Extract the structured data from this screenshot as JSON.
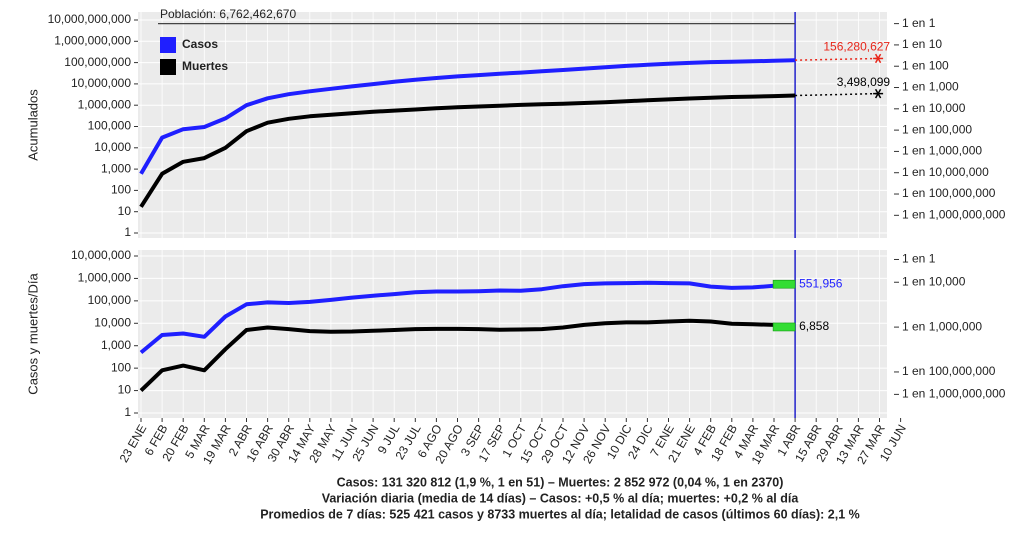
{
  "chart_data": [
    {
      "type": "line",
      "y_label": "Acumulados",
      "log_y": true,
      "grid": true,
      "legend": "top-left",
      "ylim": [
        1,
        10000000000
      ],
      "yticks": [
        1,
        10,
        100,
        {
          "value": 1000,
          "label": "1,000"
        },
        {
          "value": 10000,
          "label": "10,000"
        },
        {
          "value": 100000,
          "label": "100,000"
        },
        {
          "value": 1000000,
          "label": "1,000,000"
        },
        {
          "value": 10000000,
          "label": "10,000,000"
        },
        {
          "value": 100000000,
          "label": "100,000,000"
        },
        {
          "value": 1000000000,
          "label": "1,000,000,000"
        },
        {
          "value": 10000000000,
          "label": "10,000,000,000"
        }
      ],
      "y2lim": [
        1,
        10000000000
      ],
      "y2ticks": [
        {
          "value": 6762462670,
          "label": "1 en 1"
        },
        {
          "value": 676246267,
          "label": "1 en 10"
        },
        {
          "value": 67624626.7,
          "label": "1 en 100"
        },
        {
          "value": 6762462.67,
          "label": "1 en 1,000"
        },
        {
          "value": 676246.267,
          "label": "1 en 10,000"
        },
        {
          "value": 67624.6267,
          "label": "1 en 100,000"
        },
        {
          "value": 6762.46267,
          "label": "1 en 1,000,000"
        },
        {
          "value": 676.246267,
          "label": "1 en 10,000,000"
        },
        {
          "value": 67.6246267,
          "label": "1 en 100,000,000"
        },
        {
          "value": 6.76246267,
          "label": "1 en 1,000,000,000"
        }
      ],
      "population": {
        "value": 6762462670,
        "label": "Población: 6,762,462,670"
      },
      "series": [
        {
          "name": "Casos",
          "color": "#1f1fff",
          "values": [
            600,
            30000,
            75000,
            95000,
            240000,
            1000000,
            2100000,
            3300000,
            4500000,
            5900000,
            7600000,
            9800000,
            12500000,
            15500000,
            19000000,
            22500000,
            26000000,
            30000000,
            34000000,
            39000000,
            45000000,
            52000000,
            61000000,
            70000000,
            79000000,
            88000000,
            97000000,
            105000000,
            110000000,
            115000000,
            121000000,
            130000000,
            null,
            null,
            null,
            null
          ],
          "projection": {
            "value": 156280627,
            "label": "156,280,627",
            "color": "#e8261a"
          }
        },
        {
          "name": "Muertes",
          "color": "#000000",
          "values": [
            17,
            600,
            2200,
            3300,
            10000,
            60000,
            150000,
            230000,
            300000,
            360000,
            420000,
            490000,
            560000,
            630000,
            720000,
            800000,
            870000,
            950000,
            1030000,
            1100000,
            1180000,
            1270000,
            1390000,
            1540000,
            1690000,
            1870000,
            2070000,
            2260000,
            2420000,
            2540000,
            2670000,
            2840000,
            null,
            null,
            null,
            null
          ],
          "projection": {
            "value": 3498099,
            "label": "3,498,099",
            "color": "#000000"
          }
        }
      ]
    },
    {
      "type": "line",
      "y_label": "Casos y muertes/Día",
      "log_y": true,
      "grid": true,
      "categories": [
        "23 ENE",
        "6 FEB",
        "20 FEB",
        "5 MAR",
        "19 MAR",
        "2 ABR",
        "16 ABR",
        "30 ABR",
        "14 MAY",
        "28 MAY",
        "11 JUN",
        "25 JUN",
        "9 JUL",
        "23 JUL",
        "6 AGO",
        "20 AGO",
        "3 SEP",
        "17 SEP",
        "1 OCT",
        "15 OCT",
        "29 OCT",
        "12 NOV",
        "26 NOV",
        "10 DIC",
        "24 DIC",
        "7 ENE",
        "21 ENE",
        "4 FEB",
        "18 FEB",
        "4 MAR",
        "18 MAR",
        "1 ABR",
        "15 ABR",
        "29 ABR",
        "13 MAR",
        "27 MAR",
        "10 JUN"
      ],
      "ylim": [
        1,
        10000000
      ],
      "yticks": [
        1,
        10,
        100,
        {
          "value": 1000,
          "label": "1,000"
        },
        {
          "value": 10000,
          "label": "10,000"
        },
        {
          "value": 100000,
          "label": "100,000"
        },
        {
          "value": 1000000,
          "label": "1,000,000"
        },
        {
          "value": 10000000,
          "label": "10,000,000"
        }
      ],
      "y2lim": [
        1,
        10000000
      ],
      "y2ticks": [
        {
          "value": 7000000,
          "label": "1 en 1"
        },
        {
          "value": 676246.267,
          "label": "1 en 10,000"
        },
        {
          "value": 6762.46267,
          "label": "1 en 1,000,000"
        },
        {
          "value": 67.6246267,
          "label": "1 en 100,000,000"
        },
        {
          "value": 6.76246267,
          "label": "1 en 1,000,000,000"
        }
      ],
      "series": [
        {
          "color": "#1f1fff",
          "values": [
            500,
            3000,
            3500,
            2500,
            20000,
            70000,
            85000,
            80000,
            90000,
            110000,
            140000,
            170000,
            200000,
            240000,
            260000,
            260000,
            270000,
            290000,
            280000,
            330000,
            450000,
            560000,
            600000,
            620000,
            640000,
            620000,
            600000,
            430000,
            380000,
            400000,
            470000,
            551956,
            null,
            null,
            null,
            null,
            null
          ],
          "value_labels": [
            null,
            null,
            null,
            null,
            null,
            null,
            null,
            null,
            null,
            null,
            null,
            null,
            null,
            null,
            null,
            null,
            null,
            null,
            null,
            null,
            null,
            null,
            null,
            null,
            null,
            null,
            null,
            null,
            null,
            null,
            null,
            "551,956",
            null,
            null,
            null,
            null,
            null
          ]
        },
        {
          "color": "#000000",
          "values": [
            10,
            80,
            130,
            80,
            700,
            5000,
            6500,
            5500,
            4500,
            4200,
            4300,
            4600,
            5000,
            5500,
            5600,
            5600,
            5500,
            5200,
            5300,
            5500,
            6500,
            8500,
            10000,
            11000,
            11000,
            12000,
            13000,
            12000,
            9500,
            9000,
            8500,
            6858,
            null,
            null,
            null,
            null,
            null
          ],
          "value_labels": [
            null,
            null,
            null,
            null,
            null,
            null,
            null,
            null,
            null,
            null,
            null,
            null,
            null,
            null,
            null,
            null,
            null,
            null,
            null,
            null,
            null,
            null,
            null,
            null,
            null,
            null,
            null,
            null,
            null,
            null,
            null,
            "6,858",
            null,
            null,
            null,
            null,
            null
          ]
        }
      ]
    }
  ],
  "footer": [
    "Casos: 131 320 812 (1,9 %, 1 en 51) – Muertes: 2 852 972 (0,04 %, 1 en 2370)",
    "Variación diaria (media de 14 días) – Casos: +0,5 % al día; muertes: +0,2 % al día",
    "Promedios de 7 días: 525 421 casos y 8733 muertes al día; letalidad de casos (últimos 60 días): 2,1 %"
  ]
}
